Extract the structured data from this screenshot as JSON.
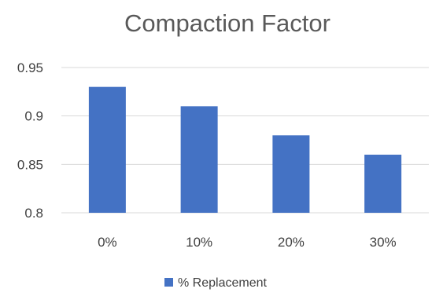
{
  "chart_data": {
    "type": "bar",
    "title": "Compaction Factor",
    "categories": [
      "0%",
      "10%",
      "20%",
      "30%"
    ],
    "series": [
      {
        "name": "% Replacement",
        "values": [
          0.93,
          0.91,
          0.88,
          0.86
        ],
        "color": "#4472C4"
      }
    ],
    "ylim": [
      0.8,
      0.95
    ],
    "yticks": [
      0.8,
      0.85,
      0.9,
      0.95
    ],
    "ytick_labels": [
      "0.8",
      "0.85",
      "0.9",
      "0.95"
    ],
    "xlabel": "",
    "ylabel": "",
    "grid": true,
    "legend_position": "bottom"
  }
}
